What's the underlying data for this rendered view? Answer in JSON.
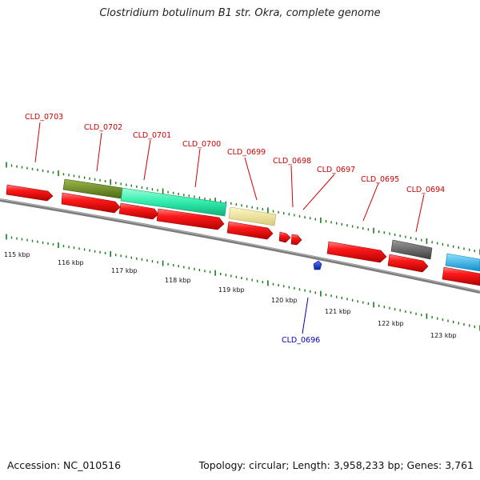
{
  "title": "Clostridium botulinum B1 str. Okra, complete genome",
  "footer": {
    "accession": "Accession: NC_010516",
    "summary": "Topology: circular; Length: 3,958,233 bp; Genes: 3,761"
  },
  "colors": {
    "forward_label": "#cc0000",
    "reverse_label": "#0000bb",
    "gene_red": "#ee1111",
    "tick_green": "#1a7a1a",
    "backbone": "#808080",
    "olive": "#6b8a23",
    "teal": "#2ee8a8",
    "khaki": "#eee39a",
    "gray_gene": "#5a5a5a",
    "sky": "#1eb4ee",
    "blue_gene": "#1133cc"
  },
  "scale_labels": [
    "115 kbp",
    "116 kbp",
    "117 kbp",
    "118 kbp",
    "119 kbp",
    "120 kbp",
    "121 kbp",
    "122 kbp",
    "123 kbp"
  ],
  "gene_labels": [
    {
      "id": "label-cld-0703",
      "text": "CLD_0703",
      "strand": "forward"
    },
    {
      "id": "label-cld-0702",
      "text": "CLD_0702",
      "strand": "forward"
    },
    {
      "id": "label-cld-0701",
      "text": "CLD_0701",
      "strand": "forward"
    },
    {
      "id": "label-cld-0700",
      "text": "CLD_0700",
      "strand": "forward"
    },
    {
      "id": "label-cld-0699",
      "text": "CLD_0699",
      "strand": "forward"
    },
    {
      "id": "label-cld-0698",
      "text": "CLD_0698",
      "strand": "forward"
    },
    {
      "id": "label-cld-0697",
      "text": "CLD_0697",
      "strand": "forward"
    },
    {
      "id": "label-cld-0695",
      "text": "CLD_0695",
      "strand": "forward"
    },
    {
      "id": "label-cld-0694",
      "text": "CLD_0694",
      "strand": "forward"
    },
    {
      "id": "label-cld-0696",
      "text": "CLD_0696",
      "strand": "reverse"
    }
  ]
}
